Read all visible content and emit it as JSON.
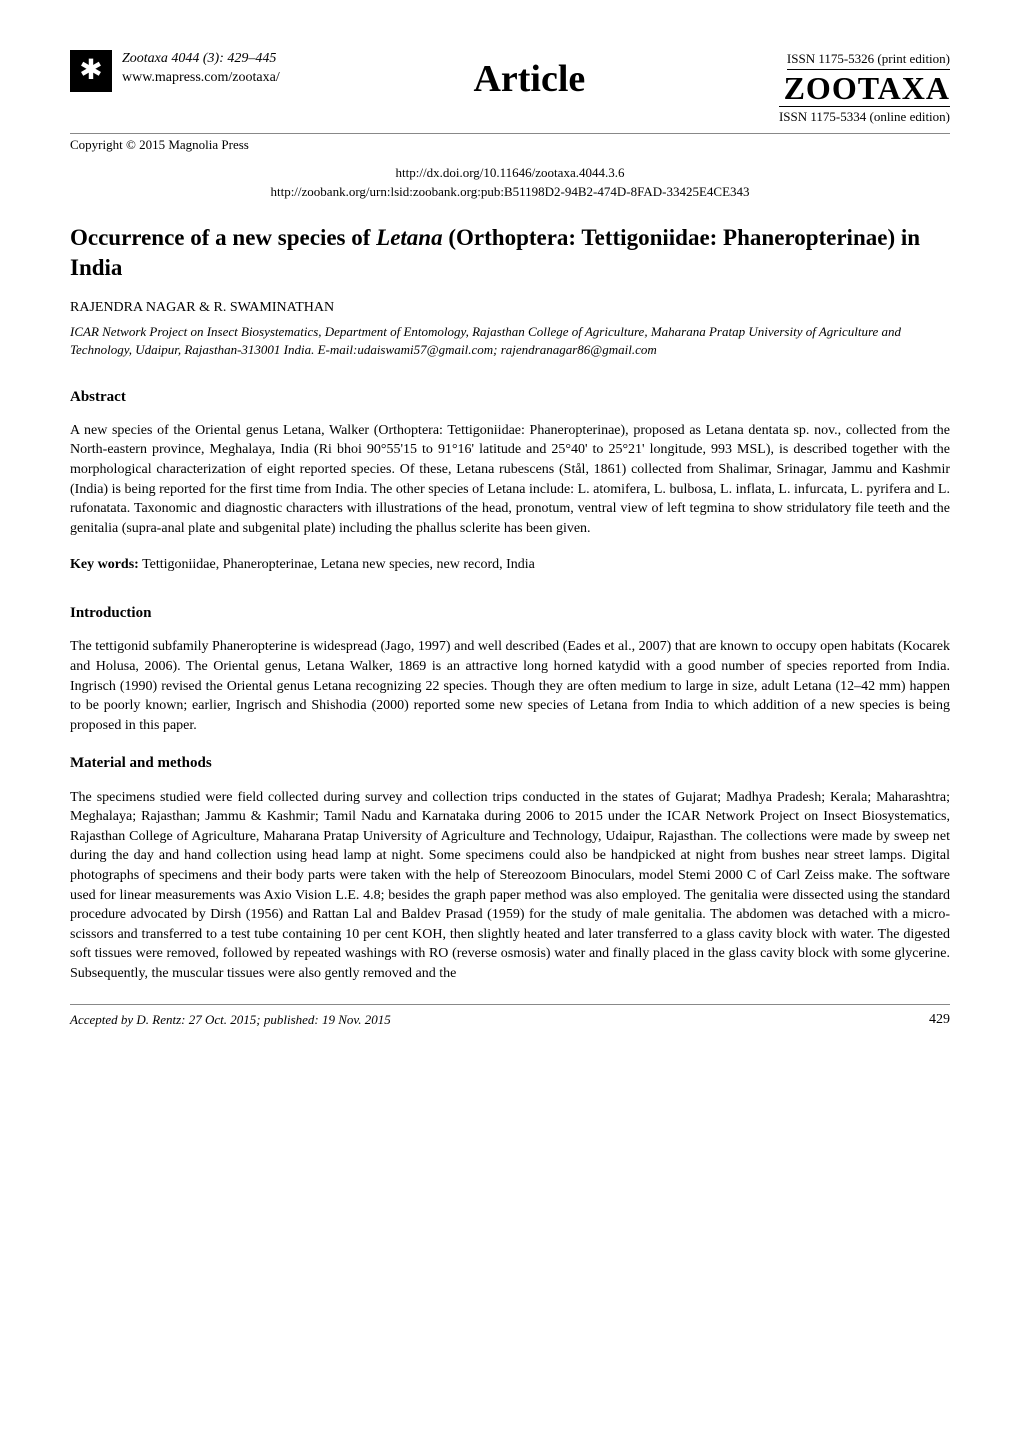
{
  "header": {
    "journal_ref": "Zootaxa 4044 (3): 429–445",
    "journal_url": "www.mapress.com/zootaxa/",
    "copyright": "Copyright © 2015 Magnolia Press",
    "article_label": "Article",
    "issn_print": "ISSN 1175-5326  (print edition)",
    "zootaxa": "ZOOTAXA",
    "issn_online": "ISSN 1175-5334 (online edition)",
    "doi": "http://dx.doi.org/10.11646/zootaxa.4044.3.6",
    "zoobank": "http://zoobank.org/urn:lsid:zoobank.org:pub:B51198D2-94B2-474D-8FAD-33425E4CE343"
  },
  "title": {
    "pre": "Occurrence of a new species of ",
    "genus": "Letana",
    "post": " (Orthoptera: Tettigoniidae: Phaneropterinae) in India"
  },
  "authors": "RAJENDRA NAGAR & R. SWAMINATHAN",
  "affiliation": "ICAR Network Project on Insect Biosystematics, Department of Entomology, Rajasthan College of Agriculture, Maharana Pratap University of Agriculture and Technology, Udaipur, Rajasthan-313001 India.\nE-mail:udaiswami57@gmail.com; rajendranagar86@gmail.com",
  "sections": {
    "abstract_heading": "Abstract",
    "abstract_body": "A new species of the Oriental genus Letana, Walker (Orthoptera: Tettigoniidae: Phaneropterinae), proposed as Letana dentata sp. nov., collected from the North-eastern province, Meghalaya, India (Ri bhoi 90°55'15 to 91°16' latitude and 25°40' to 25°21' longitude, 993 MSL), is described together with the morphological characterization of eight reported species. Of these, Letana rubescens (Stål, 1861) collected from Shalimar, Srinagar, Jammu and Kashmir (India) is being reported for the first time from India. The other species of Letana include: L. atomifera, L. bulbosa, L. inflata, L. infurcata, L. pyrifera and L. rufonatata. Taxonomic and diagnostic characters with illustrations of the head, pronotum, ventral view of left tegmina to show stridulatory file teeth and the genitalia (supra-anal plate and subgenital plate) including the phallus sclerite has been given.",
    "keywords_label": "Key words:",
    "keywords_body": " Tettigoniidae, Phaneropterinae, Letana new species, new record, India",
    "intro_heading": "Introduction",
    "intro_body": "The tettigonid subfamily Phaneropterine is widespread (Jago, 1997) and well described (Eades et al., 2007) that are known to occupy open habitats (Kocarek and Holusa, 2006). The Oriental genus, Letana Walker, 1869 is an attractive long horned katydid with a good number of species reported from India. Ingrisch (1990) revised the Oriental genus Letana recognizing 22 species. Though they are often medium to large in size, adult Letana (12–42 mm) happen to be poorly known; earlier, Ingrisch and Shishodia (2000) reported some new species of Letana from India to which addition of a new species is being proposed in this paper.",
    "methods_heading": "Material and methods",
    "methods_body": "The specimens studied were field collected during survey and collection trips conducted in the states of Gujarat; Madhya Pradesh; Kerala; Maharashtra; Meghalaya; Rajasthan; Jammu & Kashmir; Tamil Nadu and Karnataka during 2006 to 2015 under the ICAR Network Project on Insect Biosystematics, Rajasthan College of Agriculture, Maharana Pratap University of Agriculture and Technology, Udaipur, Rajasthan. The collections were made by sweep net during the day and hand collection using head lamp at night. Some specimens could also be handpicked at night from bushes near street lamps. Digital photographs of specimens and their body parts were taken with the help of Stereozoom Binoculars, model Stemi 2000 C of Carl Zeiss make. The software used for linear measurements was Axio Vision L.E. 4.8; besides the graph paper method was also employed. The genitalia were dissected using the standard procedure advocated by Dirsh (1956) and Rattan Lal and Baldev Prasad (1959) for the study of male genitalia. The abdomen was detached with a micro-scissors and transferred to a test tube containing 10 per cent KOH, then slightly heated and later transferred to a glass cavity block with water. The digested soft tissues were removed, followed by repeated washings with RO (reverse osmosis) water and finally placed in the glass cavity block with some glycerine. Subsequently, the muscular tissues were also gently removed and the"
  },
  "footer": {
    "accepted": "Accepted by D. Rentz: 27 Oct. 2015; published: 19 Nov. 2015",
    "page": "429"
  },
  "style": {
    "body_font_size": 14,
    "title_font_size": 23,
    "article_label_size": 38,
    "zootaxa_logo_size": 32,
    "background": "#ffffff",
    "text_color": "#000000",
    "rule_color": "#888888"
  }
}
